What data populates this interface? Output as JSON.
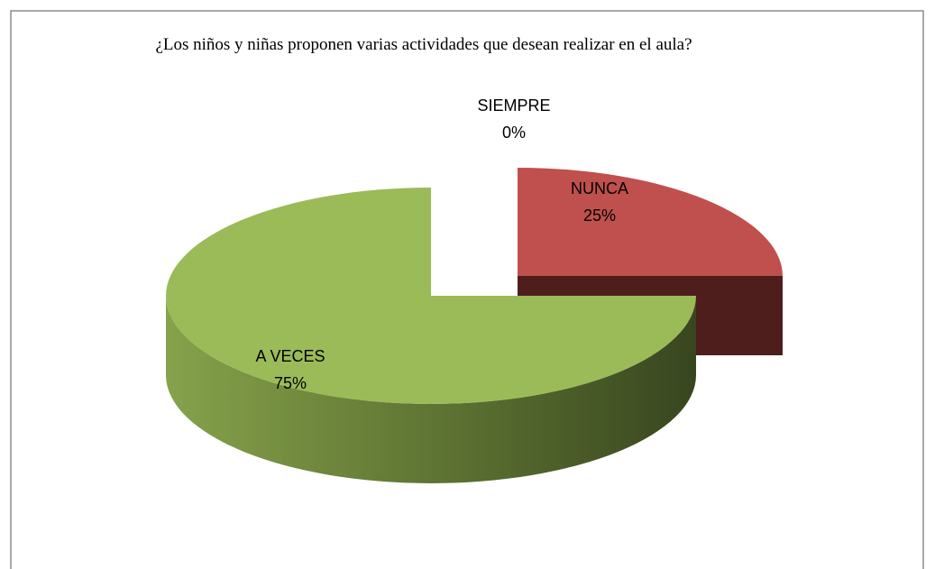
{
  "chart_data": {
    "type": "pie",
    "title": "¿Los niños y niñas proponen  varias actividades que desean realizar en el aula?",
    "categories": [
      "SIEMPRE",
      "NUNCA",
      "A VECES"
    ],
    "values": [
      0,
      25,
      75
    ],
    "value_labels": [
      "0%",
      "25%",
      "75%"
    ],
    "colors": [
      "#4f81bd",
      "#c0504d",
      "#9bbb59"
    ]
  }
}
